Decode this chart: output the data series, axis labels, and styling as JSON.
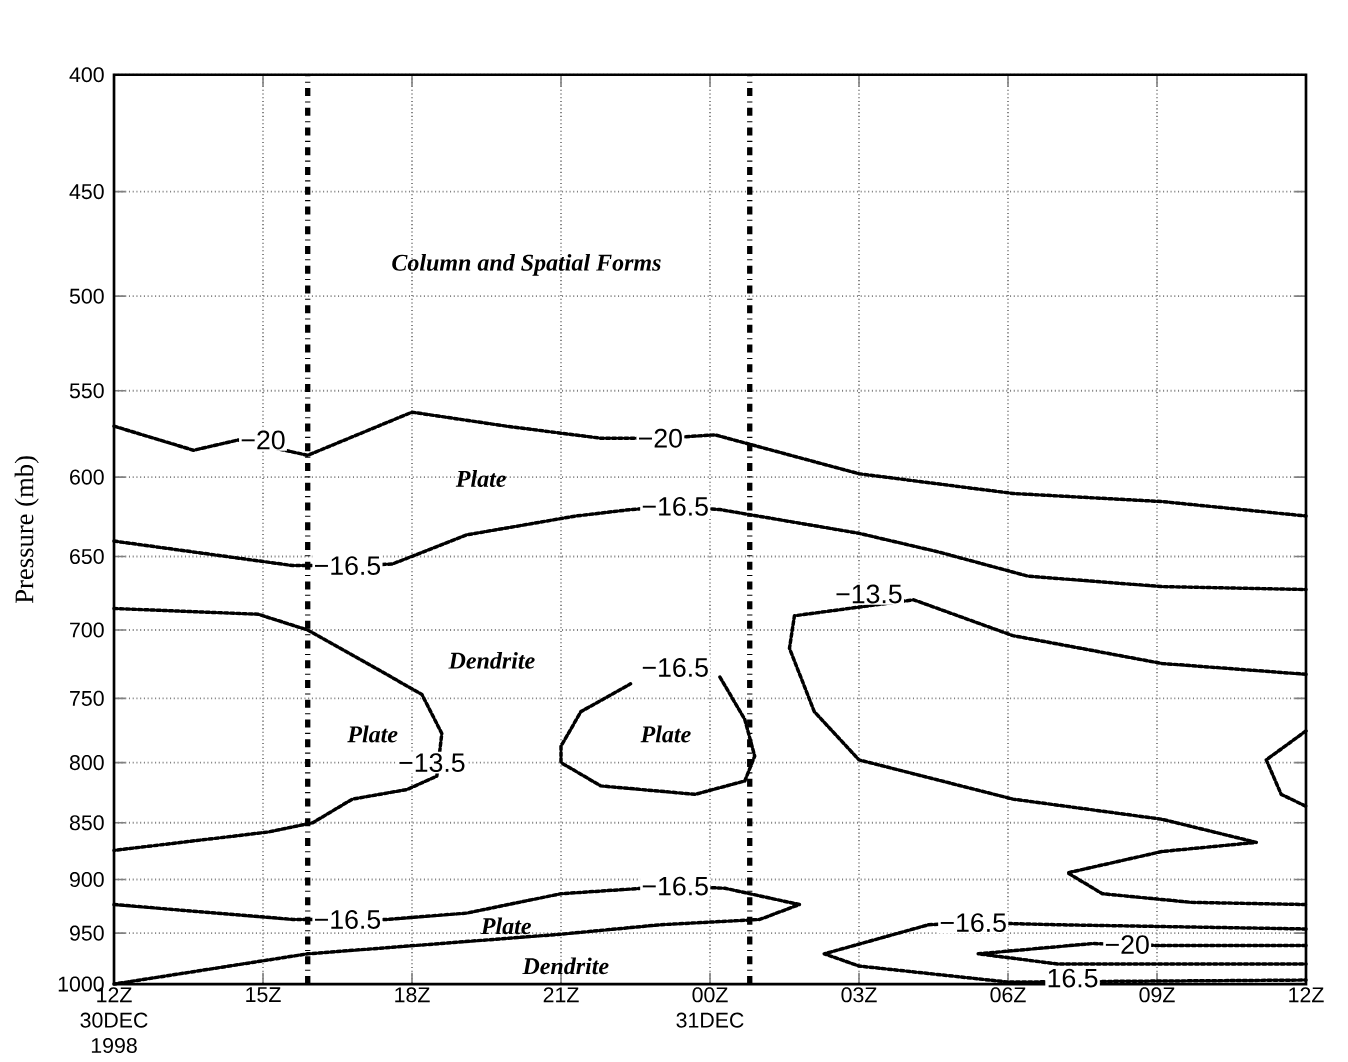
{
  "chart_data": {
    "type": "line",
    "ylabel": "Pressure (mb)",
    "log": "y",
    "grid": true,
    "line_style": "dotted",
    "marker": "none",
    "xlim": [
      "1998-12-30T12:00",
      "1998-12-31T12:00"
    ],
    "xticks": [
      {
        "value": "1998-12-30T12:00",
        "label": "12Z 30DEC 1998"
      },
      {
        "value": "1998-12-30T15:00",
        "label": "15Z"
      },
      {
        "value": "1998-12-30T18:00",
        "label": "18Z"
      },
      {
        "value": "1998-12-30T21:00",
        "label": "21Z"
      },
      {
        "value": "1998-12-31T00:00",
        "label": "00Z 31DEC"
      },
      {
        "value": "1998-12-31T03:00",
        "label": "03Z"
      },
      {
        "value": "1998-12-31T06:00",
        "label": "06Z"
      },
      {
        "value": "1998-12-31T09:00",
        "label": "09Z"
      },
      {
        "value": "1998-12-31T12:00",
        "label": "12Z"
      }
    ],
    "ylim": [
      1000,
      400
    ],
    "yticks": [
      400,
      450,
      500,
      550,
      600,
      650,
      700,
      750,
      800,
      850,
      900,
      950,
      1000
    ],
    "series": [
      {
        "color": "#000000",
        "x": [
          "1998-12-30T12:00",
          "1998-12-30T13:36",
          "1998-12-30T14:30",
          "1998-12-30T15:06",
          "1998-12-30T15:54",
          "1998-12-30T18:00",
          "1998-12-30T19:54",
          "1998-12-30T21:48",
          "1998-12-30T23:00",
          "1998-12-31T00:06",
          "1998-12-31T03:00",
          "1998-12-31T06:06",
          "1998-12-31T09:06",
          "1998-12-31T12:00"
        ],
        "values": [
          570,
          584,
          578,
          null,
          587,
          562,
          570,
          577,
          577,
          575,
          598,
          610,
          615,
          624
        ]
      },
      {
        "color": "#000000",
        "x": [
          "1998-12-30T12:00",
          "1998-12-30T15:36",
          "1998-12-30T16:42",
          "1998-12-30T17:36",
          "1998-12-30T19:06",
          "1998-12-30T21:18",
          "1998-12-30T22:24",
          "1998-12-30T23:18",
          "1998-12-31T00:12",
          "1998-12-31T03:00",
          "1998-12-31T04:36",
          "1998-12-31T06:24",
          "1998-12-31T09:06",
          "1998-12-31T12:00"
        ],
        "values": [
          640,
          656,
          656,
          655,
          636,
          624,
          620,
          618,
          620,
          635,
          647,
          663,
          670,
          672
        ]
      },
      {
        "color": "#000000",
        "x": [
          "1998-12-30T12:00",
          "1998-12-30T14:54",
          "1998-12-30T15:54",
          "1998-12-30T17:12",
          "1998-12-30T18:12",
          "1998-12-30T18:36",
          "1998-12-30T18:30",
          "1998-12-30T17:54",
          "1998-12-30T16:48",
          "1998-12-30T16:00",
          "1998-12-30T15:06",
          "1998-12-30T12:00"
        ],
        "values": [
          685,
          689,
          700,
          726,
          747,
          777,
          811,
          822,
          830,
          850,
          858,
          874
        ]
      },
      {
        "color": "#000000",
        "x": [
          "1998-12-31T00:12",
          "1998-12-31T00:42",
          "1998-12-31T00:54",
          "1998-12-31T00:42",
          "1998-12-30T23:42",
          "1998-12-30T21:48",
          "1998-12-30T21:00",
          "1998-12-30T21:00",
          "1998-12-30T21:24",
          "1998-12-30T22:24"
        ],
        "values": [
          734,
          766,
          795,
          815,
          826,
          819,
          800,
          787,
          760,
          739
        ]
      },
      {
        "color": "#000000",
        "x": [
          "1998-12-31T12:00",
          "1998-12-31T09:06",
          "1998-12-31T06:06",
          "1998-12-31T04:06",
          "1998-12-31T03:00",
          "1998-12-31T01:42",
          "1998-12-31T01:36",
          "1998-12-31T02:06",
          "1998-12-31T03:00",
          "1998-12-31T06:06",
          "1998-12-31T09:06",
          "1998-12-31T11:00",
          "1998-12-31T09:06",
          "1998-12-31T07:12",
          "1998-12-31T07:54",
          "1998-12-31T09:42",
          "1998-12-31T12:00"
        ],
        "values": [
          732,
          724,
          704,
          679,
          null,
          690,
          713,
          760,
          798,
          830,
          847,
          867,
          875,
          894,
          913,
          921,
          923
        ]
      },
      {
        "color": "#000000",
        "x": [
          "1998-12-31T12:00",
          "1998-12-31T11:12",
          "1998-12-31T11:30",
          "1998-12-31T12:00"
        ],
        "values": [
          775,
          798,
          826,
          836
        ]
      },
      {
        "color": "#000000",
        "x": [
          "1998-12-30T12:00",
          "1998-12-30T15:36",
          "1998-12-30T17:30",
          "1998-12-30T19:06",
          "1998-12-30T21:00",
          "1998-12-30T23:18",
          "1998-12-31T00:18",
          "1998-12-31T01:48",
          "1998-12-31T01:00",
          "1998-12-30T23:00",
          "1998-12-30T21:00",
          "1998-12-30T15:54",
          "1998-12-30T12:00"
        ],
        "values": [
          923,
          937,
          937,
          931,
          913,
          906,
          908,
          923,
          937,
          942,
          951,
          970,
          1000
        ]
      },
      {
        "color": "#000000",
        "x": [
          "1998-12-31T12:00",
          "1998-12-31T07:00",
          "1998-12-31T05:18",
          "1998-12-31T04:24",
          "1998-12-31T02:18",
          "1998-12-31T03:00",
          "1998-12-31T06:00",
          "1998-12-31T07:00",
          "1998-12-31T12:00"
        ],
        "values": [
          946,
          942,
          940,
          942,
          970,
          982,
          998,
          null,
          996
        ]
      },
      {
        "color": "#000000",
        "x": [
          "1998-12-31T12:00",
          "1998-12-31T09:06",
          "1998-12-31T07:42",
          "1998-12-31T05:24",
          "1998-12-31T07:00",
          "1998-12-31T12:00"
        ],
        "values": [
          962,
          962,
          960,
          970,
          980,
          980
        ]
      }
    ],
    "ref_lines": [
      {
        "axis": "x",
        "value": "1998-12-30T15:54",
        "line_style": "dashdot"
      },
      {
        "axis": "x",
        "value": "1998-12-31T00:48",
        "line_style": "dashdot"
      }
    ],
    "annotations": [
      {
        "text": "−20",
        "x": "1998-12-30T15:00",
        "y": 578
      },
      {
        "text": "−20",
        "x": "1998-12-30T23:00",
        "y": 577
      },
      {
        "text": "−16.5",
        "x": "1998-12-30T16:42",
        "y": 656
      },
      {
        "text": "−16.5",
        "x": "1998-12-30T23:18",
        "y": 618
      },
      {
        "text": "−13.5",
        "x": "1998-12-30T18:24",
        "y": 800
      },
      {
        "text": "−16.5",
        "x": "1998-12-30T23:18",
        "y": 727
      },
      {
        "text": "−13.5",
        "x": "1998-12-31T03:12",
        "y": 675
      },
      {
        "text": "−16.5",
        "x": "1998-12-30T16:42",
        "y": 937
      },
      {
        "text": "−16.5",
        "x": "1998-12-30T23:18",
        "y": 906
      },
      {
        "text": "−16.5",
        "x": "1998-12-31T05:18",
        "y": 940
      },
      {
        "text": "−20",
        "x": "1998-12-31T08:24",
        "y": 961
      },
      {
        "text": "16.5",
        "x": "1998-12-31T07:18",
        "y": 994
      },
      "Column and Spatial Forms",
      "Plate",
      "Dendrite",
      "Plate",
      "Plate",
      "Plate",
      "Dendrite"
    ]
  }
}
